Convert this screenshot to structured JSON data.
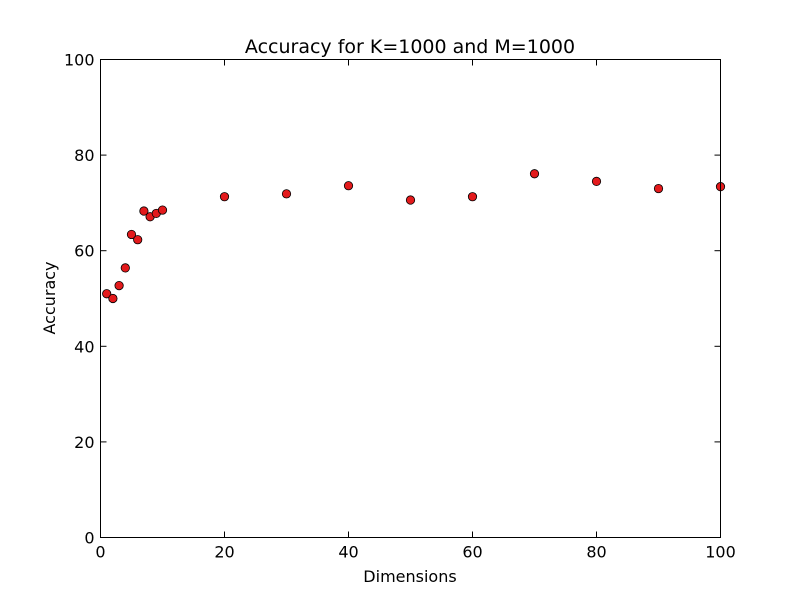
{
  "chart_data": {
    "type": "scatter",
    "title": "Accuracy for K=1000 and M=1000",
    "xlabel": "Dimensions",
    "ylabel": "Accuracy",
    "xlim": [
      0,
      100
    ],
    "ylim": [
      0,
      100
    ],
    "xticks": [
      0,
      20,
      40,
      60,
      80,
      100
    ],
    "yticks": [
      0,
      20,
      40,
      60,
      80,
      100
    ],
    "grid": false,
    "marker_color": "#e31a1c",
    "series": [
      {
        "x": [
          1,
          2,
          3,
          4,
          5,
          6,
          7,
          8,
          9,
          10,
          20,
          30,
          40,
          50,
          60,
          70,
          80,
          90,
          100
        ],
        "y": [
          51.0,
          50.0,
          52.7,
          56.4,
          63.4,
          62.3,
          68.3,
          67.1,
          67.8,
          68.5,
          71.3,
          71.9,
          73.6,
          70.6,
          71.3,
          76.1,
          74.5,
          73.0,
          73.4
        ]
      }
    ]
  }
}
